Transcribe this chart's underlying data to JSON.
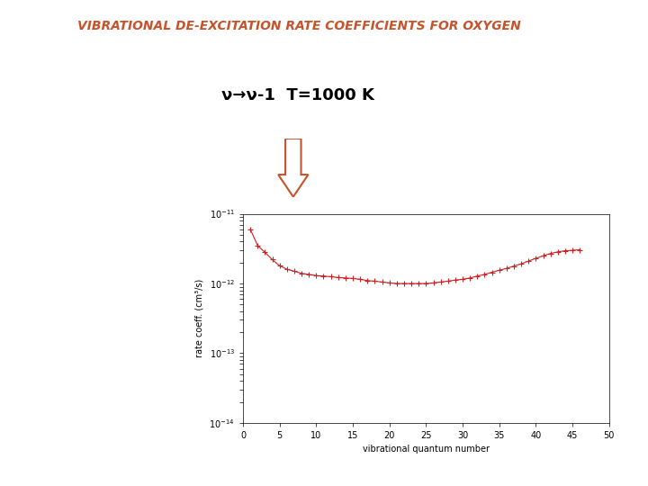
{
  "title": "VIBRATIONAL DE-EXCITATION RATE COEFFICIENTS FOR OXYGEN",
  "title_color": "#c8522a",
  "subtitle": "ν→ν-1  T=1000 K",
  "xlabel": "vibrational quantum number",
  "ylabel": "rate coeff. (cm³/s)",
  "xlim": [
    0,
    50
  ],
  "ylim_log": [
    -14,
    -11
  ],
  "x_data": [
    1,
    2,
    3,
    4,
    5,
    6,
    7,
    8,
    9,
    10,
    11,
    12,
    13,
    14,
    15,
    16,
    17,
    18,
    19,
    20,
    21,
    22,
    23,
    24,
    25,
    26,
    27,
    28,
    29,
    30,
    31,
    32,
    33,
    34,
    35,
    36,
    37,
    38,
    39,
    40,
    41,
    42,
    43,
    44,
    45,
    46
  ],
  "y_data": [
    6e-12,
    3.5e-12,
    2.8e-12,
    2.2e-12,
    1.8e-12,
    1.6e-12,
    1.5e-12,
    1.4e-12,
    1.35e-12,
    1.3e-12,
    1.28e-12,
    1.25e-12,
    1.22e-12,
    1.2e-12,
    1.18e-12,
    1.15e-12,
    1.1e-12,
    1.08e-12,
    1.05e-12,
    1.02e-12,
    1e-12,
    1e-12,
    1e-12,
    1e-12,
    1e-12,
    1.02e-12,
    1.05e-12,
    1.08e-12,
    1.12e-12,
    1.15e-12,
    1.2e-12,
    1.28e-12,
    1.35e-12,
    1.45e-12,
    1.55e-12,
    1.65e-12,
    1.78e-12,
    1.92e-12,
    2.1e-12,
    2.3e-12,
    2.5e-12,
    2.7e-12,
    2.85e-12,
    2.95e-12,
    3e-12,
    3.05e-12
  ],
  "line_color": "#cc2222",
  "marker": "+",
  "marker_size": 4,
  "line_width": 0.8,
  "background_color": "#ffffff",
  "arrow_color": "#c8522a",
  "title_fontsize": 10,
  "subtitle_fontsize": 13,
  "axis_label_fontsize": 7,
  "tick_fontsize": 7
}
